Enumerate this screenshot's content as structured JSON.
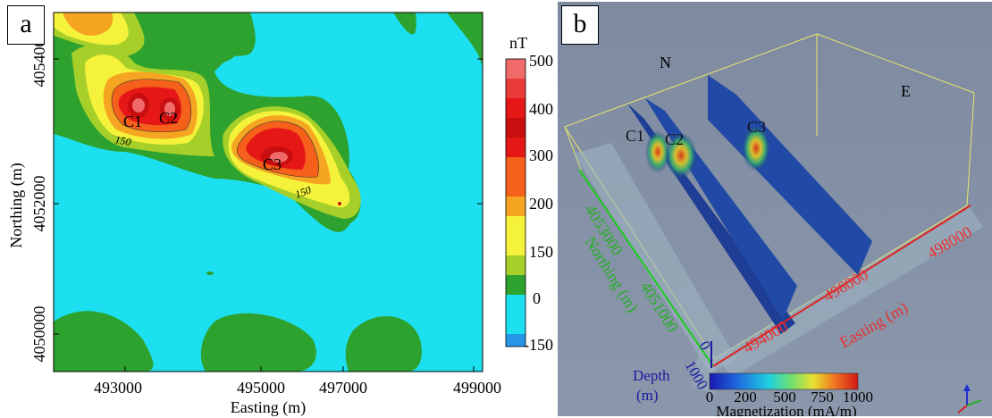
{
  "panel_a": {
    "label": "a",
    "xlabel": "Easting (m)",
    "ylabel": "Northing (m)",
    "xticks": [
      "493000",
      "495000",
      "497000",
      "499000"
    ],
    "yticks": [
      "4054000",
      "4052000",
      "4050000"
    ],
    "colorbar_title": "nT",
    "colorbar_ticks": [
      "500",
      "400",
      "300",
      "200",
      "150",
      "0",
      "-150"
    ],
    "contour_labels": [
      "150",
      "150"
    ],
    "anomalies": [
      "C1",
      "C2",
      "C3"
    ]
  },
  "panel_b": {
    "label": "b",
    "north_label": "N",
    "east_label": "E",
    "anomalies": [
      "C1",
      "C2",
      "C3"
    ],
    "northing_ticks": [
      "4053000",
      "4051000"
    ],
    "northing_label": "Northing (m)",
    "easting_ticks": [
      "494000",
      "496000",
      "498000"
    ],
    "easting_label": "Easting (m)",
    "depth_ticks": [
      "0",
      "1000"
    ],
    "depth_label_1": "Depth",
    "depth_label_2": "(m)",
    "colorbar_ticks": [
      "0",
      "200",
      "500",
      "750",
      "1000"
    ],
    "colorbar_label": "Magnetization (mA/m)"
  },
  "chart_data": [
    {
      "type": "heatmap",
      "title": "",
      "xlabel": "Easting (m)",
      "ylabel": "Northing (m)",
      "xlim": [
        492500,
        499100
      ],
      "ylim": [
        4049500,
        4054700
      ],
      "colorbar": {
        "title": "nT",
        "levels": [
          -150,
          0,
          150,
          200,
          300,
          400,
          500
        ]
      },
      "anomalies": [
        {
          "name": "C1",
          "x": 493800,
          "y": 4053300,
          "peak_nT": 450
        },
        {
          "name": "C2",
          "x": 494200,
          "y": 4053300,
          "peak_nT": 450
        },
        {
          "name": "C3",
          "x": 495800,
          "y": 4052600,
          "peak_nT": 400
        }
      ]
    },
    {
      "type": "heatmap",
      "title": "",
      "xlabel": "Easting (m)",
      "ylabel": "Northing (m)",
      "zlabel": "Depth (m)",
      "colorbar": {
        "title": "Magnetization (mA/m)",
        "range": [
          0,
          1000
        ]
      },
      "sections": [
        "C1",
        "C2",
        "C3"
      ]
    }
  ]
}
